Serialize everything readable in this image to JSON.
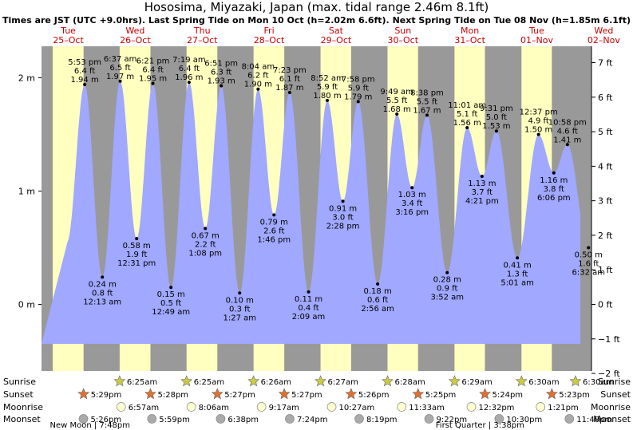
{
  "title": "Hososima, Miyazaki, Japan (max. tidal range 2.46m 8.1ft)",
  "subtitle": "Times are JST (UTC +9.0hrs). Last Spring Tide on Mon 10 Oct (h=2.02m 6.6ft). Next Spring Tide on Tue 08 Nov (h=1.85m 6.1ft)",
  "colors": {
    "day": "#ffffc0",
    "night": "#999999",
    "water": "#a0a8ff",
    "date_header": "#cc0000",
    "sun_star": "#cccc44",
    "sunset_star": "#e07030",
    "moonrise": "#ffffd0",
    "moonset": "#aaaaaa"
  },
  "chart_data": {
    "type": "area",
    "ylabel_left": "m",
    "ylabel_right": "ft",
    "yticks_m": [
      {
        "value": 2,
        "label": "2 m"
      },
      {
        "value": 1,
        "label": "1 m"
      },
      {
        "value": 0,
        "label": "0 m"
      }
    ],
    "yticks_ft": [
      {
        "value": 7,
        "label": "7 ft"
      },
      {
        "value": 6,
        "label": "6 ft"
      },
      {
        "value": 5,
        "label": "5 ft"
      },
      {
        "value": 4,
        "label": "4 ft"
      },
      {
        "value": 3,
        "label": "3 ft"
      },
      {
        "value": 2,
        "label": "2 ft"
      },
      {
        "value": 1,
        "label": "1 ft"
      },
      {
        "value": 0,
        "label": "0 ft"
      },
      {
        "value": -1,
        "label": "−1 ft"
      },
      {
        "value": -2,
        "label": "−2 ft"
      }
    ],
    "days": [
      {
        "dow": "Tue",
        "date": "25–Oct"
      },
      {
        "dow": "Wed",
        "date": "26–Oct"
      },
      {
        "dow": "Thu",
        "date": "27–Oct"
      },
      {
        "dow": "Fri",
        "date": "28–Oct"
      },
      {
        "dow": "Sat",
        "date": "29–Oct"
      },
      {
        "dow": "Sun",
        "date": "30–Oct"
      },
      {
        "dow": "Mon",
        "date": "31–Oct"
      },
      {
        "dow": "Tue",
        "date": "01–Nov"
      },
      {
        "dow": "Wed",
        "date": "02–Nov"
      }
    ],
    "tides": [
      {
        "day": 0,
        "time": "5:53 pm",
        "m": 1.94,
        "m_label": "1.94 m",
        "ft": "6.4 ft",
        "type": "high"
      },
      {
        "day": 1,
        "time": "12:13 am",
        "m": 0.24,
        "m_label": "0.24 m",
        "ft": "0.8 ft",
        "type": "low"
      },
      {
        "day": 1,
        "time": "6:37 am",
        "m": 1.97,
        "m_label": "1.97 m",
        "ft": "6.5 ft",
        "type": "high"
      },
      {
        "day": 1,
        "time": "12:31 pm",
        "m": 0.58,
        "m_label": "0.58 m",
        "ft": "1.9 ft",
        "type": "low"
      },
      {
        "day": 1,
        "time": "6:21 pm",
        "m": 1.95,
        "m_label": "1.95 m",
        "ft": "6.4 ft",
        "type": "high"
      },
      {
        "day": 2,
        "time": "12:49 am",
        "m": 0.15,
        "m_label": "0.15 m",
        "ft": "0.5 ft",
        "type": "low"
      },
      {
        "day": 2,
        "time": "7:19 am",
        "m": 1.96,
        "m_label": "1.96 m",
        "ft": "6.4 ft",
        "type": "high"
      },
      {
        "day": 2,
        "time": "1:08 pm",
        "m": 0.67,
        "m_label": "0.67 m",
        "ft": "2.2 ft",
        "type": "low"
      },
      {
        "day": 2,
        "time": "6:51 pm",
        "m": 1.93,
        "m_label": "1.93 m",
        "ft": "6.3 ft",
        "type": "high"
      },
      {
        "day": 3,
        "time": "1:27 am",
        "m": 0.1,
        "m_label": "0.10 m",
        "ft": "0.3 ft",
        "type": "low"
      },
      {
        "day": 3,
        "time": "8:04 am",
        "m": 1.9,
        "m_label": "1.90 m",
        "ft": "6.2 ft",
        "type": "high"
      },
      {
        "day": 3,
        "time": "1:46 pm",
        "m": 0.79,
        "m_label": "0.79 m",
        "ft": "2.6 ft",
        "type": "low"
      },
      {
        "day": 3,
        "time": "7:23 pm",
        "m": 1.87,
        "m_label": "1.87 m",
        "ft": "6.1 ft",
        "type": "high"
      },
      {
        "day": 4,
        "time": "2:09 am",
        "m": 0.11,
        "m_label": "0.11 m",
        "ft": "0.4 ft",
        "type": "low"
      },
      {
        "day": 4,
        "time": "8:52 am",
        "m": 1.8,
        "m_label": "1.80 m",
        "ft": "5.9 ft",
        "type": "high"
      },
      {
        "day": 4,
        "time": "2:28 pm",
        "m": 0.91,
        "m_label": "0.91 m",
        "ft": "3.0 ft",
        "type": "low"
      },
      {
        "day": 4,
        "time": "7:58 pm",
        "m": 1.79,
        "m_label": "1.79 m",
        "ft": "5.9 ft",
        "type": "high"
      },
      {
        "day": 5,
        "time": "2:56 am",
        "m": 0.18,
        "m_label": "0.18 m",
        "ft": "0.6 ft",
        "type": "low"
      },
      {
        "day": 5,
        "time": "9:49 am",
        "m": 1.68,
        "m_label": "1.68 m",
        "ft": "5.5 ft",
        "type": "high"
      },
      {
        "day": 5,
        "time": "3:16 pm",
        "m": 1.03,
        "m_label": "1.03 m",
        "ft": "3.4 ft",
        "type": "low"
      },
      {
        "day": 5,
        "time": "8:38 pm",
        "m": 1.67,
        "m_label": "1.67 m",
        "ft": "5.5 ft",
        "type": "high"
      },
      {
        "day": 6,
        "time": "3:52 am",
        "m": 0.28,
        "m_label": "0.28 m",
        "ft": "0.9 ft",
        "type": "low"
      },
      {
        "day": 6,
        "time": "11:01 am",
        "m": 1.56,
        "m_label": "1.56 m",
        "ft": "5.1 ft",
        "type": "high"
      },
      {
        "day": 6,
        "time": "4:21 pm",
        "m": 1.13,
        "m_label": "1.13 m",
        "ft": "3.7 ft",
        "type": "low"
      },
      {
        "day": 6,
        "time": "9:31 pm",
        "m": 1.53,
        "m_label": "1.53 m",
        "ft": "5.0 ft",
        "type": "high"
      },
      {
        "day": 7,
        "time": "5:01 am",
        "m": 0.41,
        "m_label": "0.41 m",
        "ft": "1.3 ft",
        "type": "low"
      },
      {
        "day": 7,
        "time": "12:37 pm",
        "m": 1.5,
        "m_label": "1.50 m",
        "ft": "4.9 ft",
        "type": "high"
      },
      {
        "day": 7,
        "time": "6:06 pm",
        "m": 1.16,
        "m_label": "1.16 m",
        "ft": "3.8 ft",
        "type": "low"
      },
      {
        "day": 7,
        "time": "10:58 pm",
        "m": 1.41,
        "m_label": "1.41 m",
        "ft": "4.6 ft",
        "type": "high"
      },
      {
        "day": 8,
        "time": "6:32 am",
        "m": 0.5,
        "m_label": "0.50 m",
        "ft": "1.6 ft",
        "type": "low"
      }
    ],
    "row_labels": [
      "Sunrise",
      "Sunset",
      "Moonrise",
      "Moonset"
    ],
    "sunrise": [
      {
        "day": 1,
        "time": "6:25am"
      },
      {
        "day": 2,
        "time": "6:25am"
      },
      {
        "day": 3,
        "time": "6:26am"
      },
      {
        "day": 4,
        "time": "6:27am"
      },
      {
        "day": 5,
        "time": "6:28am"
      },
      {
        "day": 6,
        "time": "6:29am"
      },
      {
        "day": 7,
        "time": "6:30am"
      },
      {
        "day": 8,
        "time": "6:30am"
      }
    ],
    "sunset": [
      {
        "day": 0,
        "time": "5:29pm"
      },
      {
        "day": 1,
        "time": "5:28pm"
      },
      {
        "day": 2,
        "time": "5:27pm"
      },
      {
        "day": 3,
        "time": "5:27pm"
      },
      {
        "day": 4,
        "time": "5:26pm"
      },
      {
        "day": 5,
        "time": "5:25pm"
      },
      {
        "day": 6,
        "time": "5:24pm"
      },
      {
        "day": 7,
        "time": "5:23pm"
      }
    ],
    "moonrise": [
      {
        "day": 1,
        "time": "6:57am"
      },
      {
        "day": 2,
        "time": "8:06am"
      },
      {
        "day": 3,
        "time": "9:17am"
      },
      {
        "day": 4,
        "time": "10:27am"
      },
      {
        "day": 5,
        "time": "11:33am"
      },
      {
        "day": 6,
        "time": "12:32pm"
      },
      {
        "day": 7,
        "time": "1:21pm"
      }
    ],
    "moonset": [
      {
        "day": 0,
        "time": "5:26pm"
      },
      {
        "day": 1,
        "time": "5:59pm"
      },
      {
        "day": 2,
        "time": "6:38pm"
      },
      {
        "day": 3,
        "time": "7:24pm"
      },
      {
        "day": 4,
        "time": "8:19pm"
      },
      {
        "day": 5,
        "time": "9:22pm"
      },
      {
        "day": 6,
        "time": "10:30pm"
      },
      {
        "day": 7,
        "time": "11:40pm"
      }
    ],
    "moon_phases": [
      {
        "day": 0,
        "time": "7:48pm",
        "label": "New Moon | 7:48pm"
      },
      {
        "day": 6,
        "time": "3:38pm",
        "label": "First Quarter | 3:38pm"
      }
    ]
  }
}
